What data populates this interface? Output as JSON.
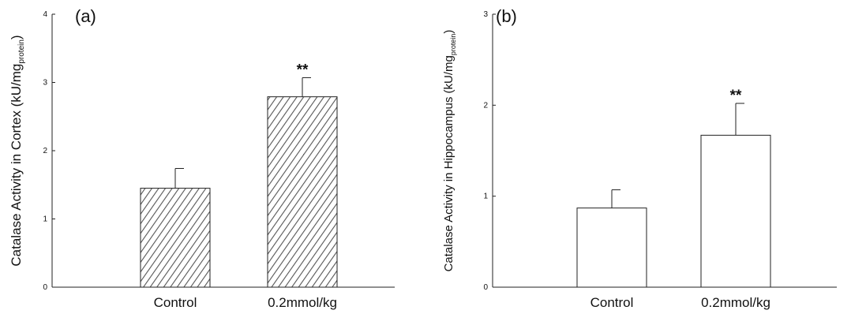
{
  "chart_data": [
    {
      "type": "bar",
      "panel_label": "(a)",
      "categories": [
        "Control",
        "0.2mmol/kg"
      ],
      "values": [
        1.45,
        2.79
      ],
      "errors": [
        0.29,
        0.28
      ],
      "annotations": [
        "",
        "**"
      ],
      "ylabel_main": "Catalase Activity in Cortex (kU/mg",
      "ylabel_sub": "protein",
      "ylabel_close": ")",
      "ylim": [
        0,
        4
      ],
      "yticks": [
        "0",
        "1",
        "2",
        "3",
        "4"
      ],
      "bar_style": "hatched",
      "grid": false
    },
    {
      "type": "bar",
      "panel_label": "(b)",
      "categories": [
        "Control",
        "0.2mmol/kg"
      ],
      "values": [
        0.87,
        1.67
      ],
      "errors": [
        0.2,
        0.35
      ],
      "annotations": [
        "",
        "**"
      ],
      "ylabel_main": "Catalase Activity in Hippocampus (kU/mg",
      "ylabel_sub": "protein",
      "ylabel_close": ")",
      "ylim": [
        0,
        3
      ],
      "yticks": [
        "0",
        "1",
        "2",
        "3"
      ],
      "bar_style": "open",
      "grid": false
    }
  ]
}
